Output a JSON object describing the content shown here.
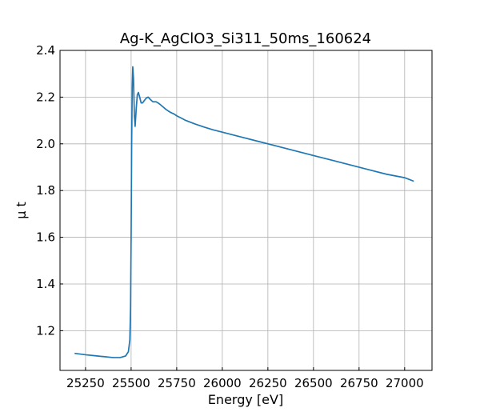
{
  "chart_data": {
    "type": "line",
    "title": "Ag-K_AgClO3_Si311_50ms_160624",
    "xlabel": "Energy [eV]",
    "ylabel": "μ t",
    "xlim": [
      25110,
      27150
    ],
    "ylim": [
      1.03,
      2.4
    ],
    "x_ticks": [
      25250,
      25500,
      25750,
      26000,
      26250,
      26500,
      26750,
      27000
    ],
    "y_ticks": [
      1.2,
      1.4,
      1.6,
      1.8,
      2.0,
      2.2,
      2.4
    ],
    "x_tick_labels": [
      "25250",
      "25500",
      "25750",
      "26000",
      "26250",
      "26500",
      "26750",
      "27000"
    ],
    "y_tick_labels": [
      "1.2",
      "1.4",
      "1.6",
      "1.8",
      "2.0",
      "2.2",
      "2.4"
    ],
    "grid": true,
    "series": [
      {
        "color": "#1f77b4",
        "x": [
          25190,
          25250,
          25300,
          25350,
          25400,
          25440,
          25470,
          25485,
          25493,
          25497,
          25500,
          25503,
          25506,
          25509,
          25513,
          25518,
          25522,
          25528,
          25534,
          25540,
          25547,
          25555,
          25563,
          25572,
          25582,
          25593,
          25603,
          25612,
          25620,
          25628,
          25637,
          25648,
          25660,
          25675,
          25690,
          25705,
          25720,
          25735,
          25750,
          25775,
          25800,
          25850,
          25900,
          25950,
          26000,
          26100,
          26200,
          26300,
          26400,
          26500,
          26600,
          26700,
          26800,
          26900,
          27000,
          27050
        ],
        "y": [
          1.103,
          1.097,
          1.093,
          1.089,
          1.085,
          1.085,
          1.092,
          1.11,
          1.16,
          1.3,
          1.6,
          2.0,
          2.24,
          2.33,
          2.28,
          2.12,
          2.075,
          2.15,
          2.21,
          2.22,
          2.2,
          2.175,
          2.175,
          2.185,
          2.195,
          2.2,
          2.192,
          2.185,
          2.18,
          2.18,
          2.18,
          2.175,
          2.168,
          2.158,
          2.148,
          2.14,
          2.133,
          2.128,
          2.12,
          2.11,
          2.1,
          2.085,
          2.072,
          2.06,
          2.05,
          2.03,
          2.01,
          1.99,
          1.97,
          1.95,
          1.93,
          1.91,
          1.89,
          1.87,
          1.855,
          1.84
        ]
      }
    ]
  }
}
